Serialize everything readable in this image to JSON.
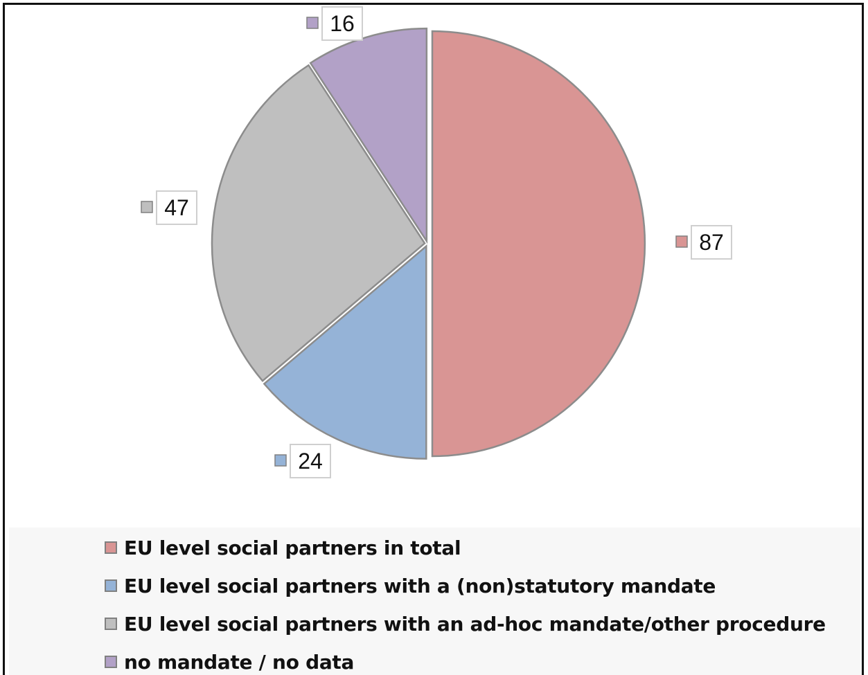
{
  "chart_data": {
    "type": "pie",
    "title": "",
    "slices": [
      {
        "name": "EU level social partners in total",
        "value": 87,
        "color": "#d99594"
      },
      {
        "name": "EU level social partners with a (non)statutory mandate",
        "value": 24,
        "color": "#95b3d7"
      },
      {
        "name": "EU level social partners with an ad-hoc mandate/other procedure",
        "value": 47,
        "color": "#bfbfbf"
      },
      {
        "name": "no mandate / no data",
        "value": 16,
        "color": "#b2a1c7"
      }
    ],
    "legend_placement": "bottom"
  },
  "legend": {
    "items": [
      "EU level social partners in total",
      "EU level social partners with a (non)statutory mandate",
      "EU level social partners with an ad-hoc mandate/other procedure",
      "no mandate / no data"
    ]
  }
}
